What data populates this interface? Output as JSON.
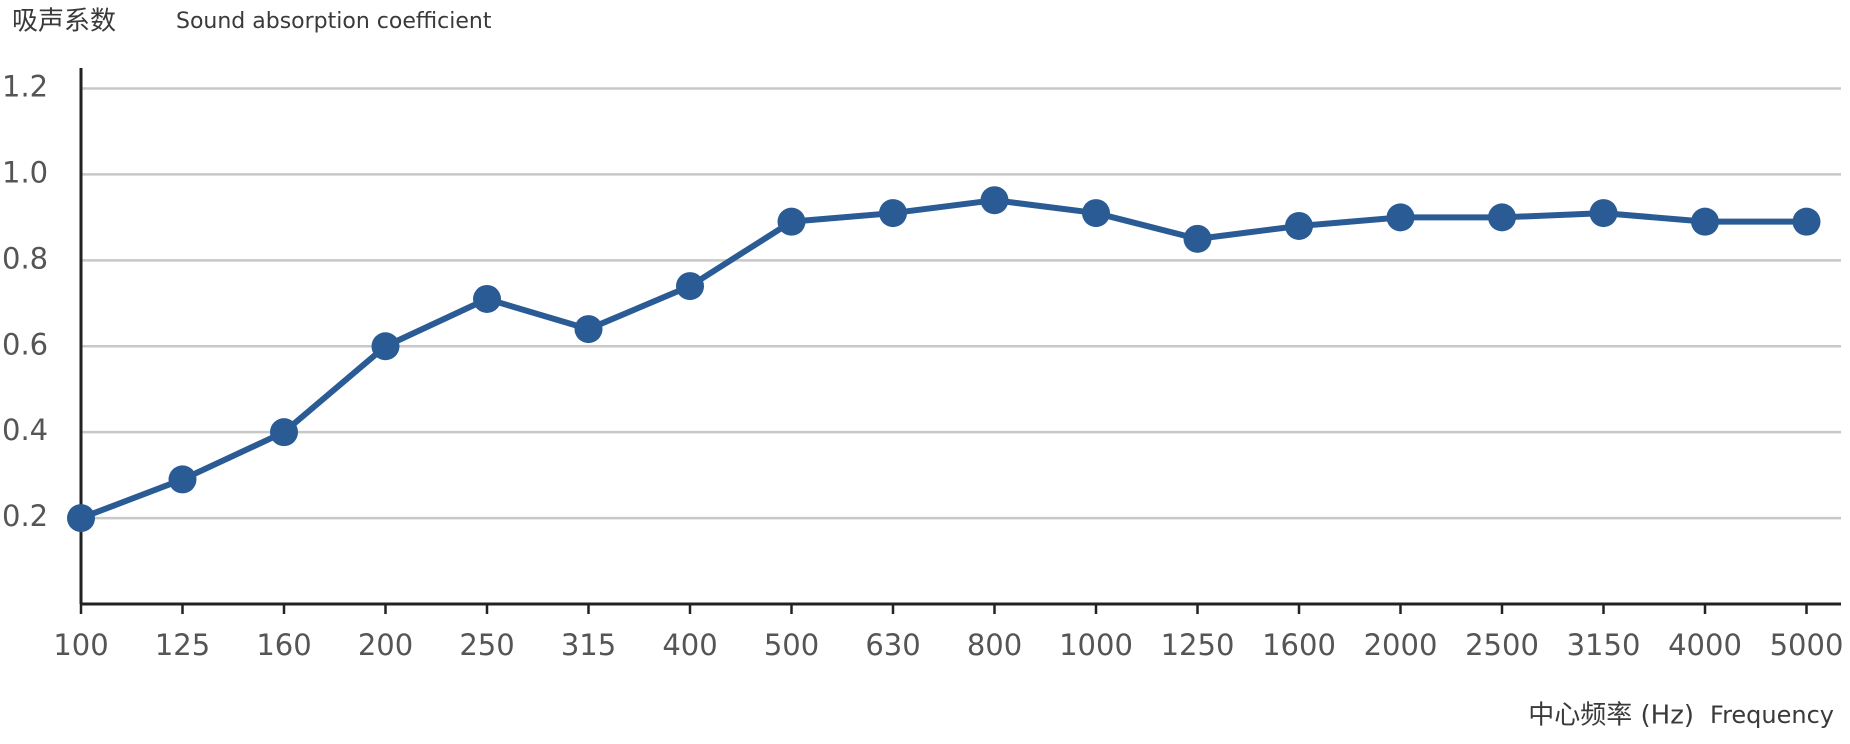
{
  "chart_data": {
    "type": "line",
    "y_title": "吸声系数",
    "y_title_en": "Sound absorption coefficient",
    "x_title": "中心频率 (Hz)",
    "x_title_en": "Frequency",
    "categories": [
      "100",
      "125",
      "160",
      "200",
      "250",
      "315",
      "400",
      "500",
      "630",
      "800",
      "1000",
      "1250",
      "1600",
      "2000",
      "2500",
      "3150",
      "4000",
      "5000"
    ],
    "series": [
      {
        "color": "#2a5b94",
        "values": [
          0.2,
          0.29,
          0.4,
          0.6,
          0.71,
          0.64,
          0.74,
          0.89,
          0.91,
          0.94,
          0.91,
          0.85,
          0.88,
          0.9,
          0.9,
          0.91,
          0.89,
          0.89
        ]
      }
    ],
    "ylim": [
      0,
      1.2
    ],
    "yticks": [
      0.2,
      0.4,
      0.6,
      0.8,
      {
        "value": 1,
        "label": "1.0"
      },
      1.2
    ],
    "grid": true
  }
}
